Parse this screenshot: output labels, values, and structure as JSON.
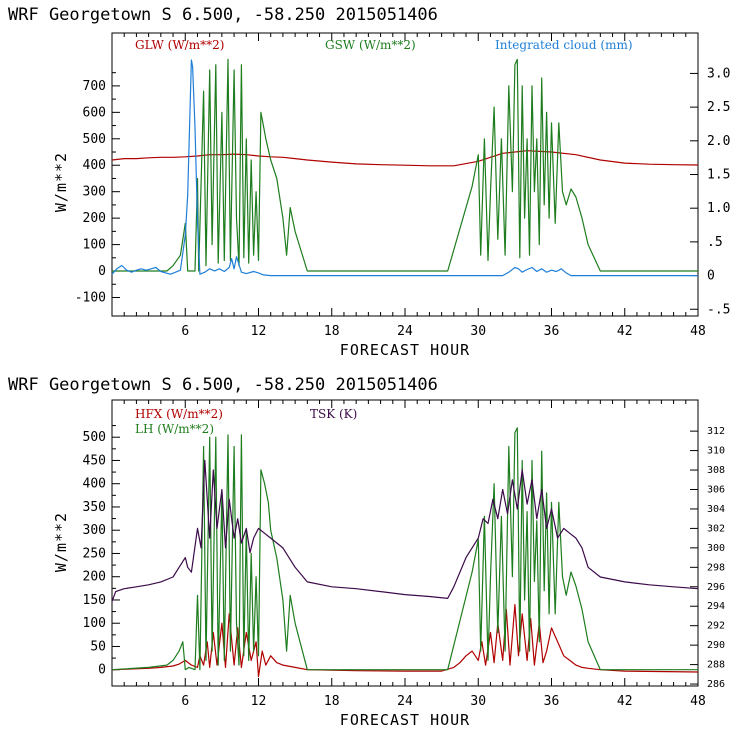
{
  "colors": {
    "red": "#b00000",
    "green": "#1e7d1e",
    "blue": "#1f7fd8",
    "purple": "#3c0a4a",
    "black": "#000000"
  },
  "chart_data": [
    {
      "type": "line",
      "title": "WRF   Georgetown S   6.500, -58.250  2015051406",
      "xlabel": "FORECAST HOUR",
      "ylabel": "W/m**2",
      "xlim": [
        0,
        48
      ],
      "ylim": [
        -170,
        900
      ],
      "y2lim": [
        -0.6,
        3.6
      ],
      "xticks": [
        6,
        12,
        18,
        24,
        30,
        36,
        42,
        48
      ],
      "yticks": [
        -100,
        0,
        100,
        200,
        300,
        400,
        500,
        600,
        700
      ],
      "y2ticks": [
        -0.5,
        0,
        0.5,
        1.0,
        1.5,
        2.0,
        2.5,
        3.0
      ],
      "y2ticklabels": [
        "-.5",
        "0",
        ".5",
        "1.0",
        "1.5",
        "2.0",
        "2.5",
        "3.0"
      ],
      "series": [
        {
          "name": "GLW (W/m**2)",
          "color": "red",
          "axis": "y",
          "x": [
            0,
            1,
            2,
            3,
            4,
            5,
            6,
            7,
            8,
            9,
            10,
            11,
            12,
            13,
            14,
            15,
            16,
            18,
            20,
            22,
            24,
            26,
            28,
            30,
            32,
            34,
            36,
            38,
            40,
            42,
            44,
            46,
            48
          ],
          "y": [
            420,
            425,
            425,
            428,
            430,
            430,
            432,
            435,
            440,
            440,
            442,
            440,
            435,
            432,
            430,
            425,
            420,
            412,
            405,
            402,
            400,
            398,
            398,
            415,
            445,
            455,
            450,
            440,
            420,
            408,
            404,
            402,
            401
          ]
        },
        {
          "name": "GSW (W/m**2)",
          "color": "green",
          "axis": "y",
          "x": [
            0,
            4.5,
            5,
            5.6,
            6,
            6.2,
            6.8,
            7.0,
            7.1,
            7.5,
            7.7,
            8.0,
            8.2,
            8.5,
            8.7,
            9.0,
            9.2,
            9.5,
            9.7,
            10.0,
            10.2,
            10.4,
            10.6,
            10.8,
            11.0,
            11.2,
            11.4,
            11.6,
            11.8,
            12.0,
            12.2,
            12.4,
            12.6,
            13.0,
            13.5,
            14.0,
            14.3,
            14.6,
            15.0,
            16.0,
            27.5,
            29.5,
            30.0,
            30.2,
            30.5,
            30.8,
            31.0,
            31.3,
            31.6,
            31.9,
            32.2,
            32.5,
            32.8,
            33.0,
            33.2,
            33.4,
            33.6,
            33.8,
            34.0,
            34.2,
            34.4,
            34.6,
            34.8,
            35.0,
            35.2,
            35.4,
            35.6,
            35.8,
            36.0,
            36.3,
            36.6,
            36.9,
            37.2,
            37.6,
            38.0,
            38.5,
            39.0,
            40.0,
            48
          ],
          "y": [
            0,
            0,
            20,
            60,
            180,
            0,
            0,
            350,
            0,
            680,
            20,
            760,
            100,
            780,
            30,
            600,
            40,
            800,
            40,
            760,
            200,
            20,
            780,
            50,
            500,
            30,
            420,
            60,
            300,
            40,
            600,
            550,
            500,
            420,
            350,
            200,
            60,
            240,
            150,
            0,
            0,
            320,
            440,
            60,
            500,
            40,
            300,
            620,
            120,
            500,
            60,
            700,
            300,
            780,
            800,
            50,
            700,
            200,
            500,
            60,
            700,
            300,
            500,
            100,
            730,
            250,
            600,
            200,
            560,
            180,
            560,
            300,
            250,
            310,
            280,
            200,
            100,
            0,
            0
          ]
        },
        {
          "name": "Integrated cloud (mm)",
          "color": "blue",
          "axis": "y2",
          "x": [
            0,
            0.4,
            0.8,
            1.2,
            1.6,
            2.0,
            2.4,
            2.8,
            3.2,
            3.6,
            4.0,
            4.4,
            4.8,
            5.2,
            5.6,
            6.0,
            6.2,
            6.4,
            6.5,
            6.6,
            6.8,
            7.0,
            7.2,
            7.6,
            8.0,
            8.4,
            8.8,
            9.2,
            9.6,
            9.8,
            10.0,
            10.2,
            10.6,
            11.0,
            11.6,
            12.0,
            12.4,
            13.0,
            32.0,
            32.5,
            33.0,
            33.3,
            33.6,
            34.0,
            34.4,
            34.8,
            35.2,
            35.6,
            36.0,
            36.4,
            36.8,
            37.2,
            37.6,
            48
          ],
          "y": [
            0.02,
            0.1,
            0.15,
            0.08,
            0.05,
            0.08,
            0.1,
            0.08,
            0.1,
            0.12,
            0.06,
            0.04,
            0.02,
            0.05,
            0.08,
            0.6,
            1.2,
            2.5,
            3.2,
            3.1,
            2.2,
            0.8,
            0.02,
            0.05,
            0.1,
            0.07,
            0.1,
            0.06,
            0.12,
            0.25,
            0.1,
            0.28,
            0.05,
            0.03,
            0.06,
            0.04,
            0.01,
            0,
            0,
            0.05,
            0.12,
            0.1,
            0.05,
            0.09,
            0.12,
            0.06,
            0.1,
            0.05,
            0.08,
            0.06,
            0.1,
            0.04,
            0,
            0
          ]
        }
      ]
    },
    {
      "type": "line",
      "title": "WRF   Georgetown S   6.500, -58.250  2015051406",
      "xlabel": "FORECAST HOUR",
      "ylabel": "W/m**2",
      "xlim": [
        0,
        48
      ],
      "ylim": [
        -35,
        580
      ],
      "y2lim": [
        285.8,
        315.2
      ],
      "xticks": [
        6,
        12,
        18,
        24,
        30,
        36,
        42,
        48
      ],
      "yticks": [
        0,
        50,
        100,
        150,
        200,
        250,
        300,
        350,
        400,
        450,
        500
      ],
      "y2ticks": [
        286,
        288,
        290,
        292,
        294,
        296,
        298,
        300,
        302,
        304,
        306,
        308,
        310,
        312
      ],
      "series": [
        {
          "name": "HFX (W/m**2)",
          "color": "red",
          "axis": "y",
          "x": [
            0,
            1,
            2,
            3,
            4,
            5,
            5.5,
            6,
            6.5,
            7,
            7.2,
            7.5,
            7.8,
            8.0,
            8.3,
            8.6,
            9.0,
            9.3,
            9.6,
            10.0,
            10.3,
            10.6,
            11.0,
            11.4,
            11.8,
            12.0,
            12.3,
            12.6,
            13.0,
            13.5,
            14.0,
            15.0,
            16.0,
            20,
            24,
            27,
            28,
            28.5,
            29,
            29.5,
            30,
            30.3,
            30.6,
            31,
            31.3,
            31.6,
            32,
            32.3,
            32.6,
            33,
            33.3,
            33.6,
            34,
            34.3,
            34.6,
            35,
            35.3,
            35.6,
            36,
            36.5,
            37,
            37.5,
            38,
            38.5,
            39,
            40,
            42,
            48
          ],
          "y": [
            0,
            1,
            2,
            3,
            5,
            8,
            12,
            20,
            10,
            5,
            30,
            10,
            60,
            5,
            80,
            10,
            100,
            5,
            120,
            10,
            90,
            5,
            80,
            20,
            60,
            -15,
            40,
            10,
            30,
            15,
            10,
            5,
            0,
            -2,
            -3,
            -3,
            5,
            15,
            30,
            40,
            20,
            60,
            10,
            80,
            15,
            100,
            20,
            130,
            10,
            140,
            30,
            120,
            20,
            110,
            10,
            100,
            15,
            40,
            90,
            60,
            30,
            20,
            10,
            5,
            3,
            0,
            -3,
            -5
          ]
        },
        {
          "name": "LH (W/m**2)",
          "color": "green",
          "axis": "y",
          "x": [
            0,
            3,
            4.5,
            5,
            5.5,
            5.8,
            6.0,
            6.3,
            6.8,
            7.0,
            7.2,
            7.5,
            7.7,
            8.0,
            8.2,
            8.5,
            8.7,
            9.0,
            9.2,
            9.5,
            9.7,
            10.0,
            10.2,
            10.4,
            10.6,
            10.8,
            11.0,
            11.2,
            11.4,
            11.6,
            11.8,
            12.0,
            12.2,
            12.5,
            12.8,
            13.0,
            13.5,
            14.0,
            14.3,
            14.6,
            15.0,
            16.0,
            27.5,
            29.5,
            30.0,
            30.2,
            30.5,
            30.8,
            31.0,
            31.3,
            31.6,
            31.9,
            32.2,
            32.5,
            32.8,
            33.0,
            33.2,
            33.4,
            33.6,
            33.8,
            34.0,
            34.2,
            34.4,
            34.6,
            34.8,
            35.0,
            35.2,
            35.4,
            35.6,
            35.8,
            36.0,
            36.3,
            36.6,
            36.9,
            37.2,
            37.6,
            38.0,
            38.5,
            39.0,
            40.0,
            48
          ],
          "y": [
            0,
            5,
            10,
            20,
            40,
            60,
            0,
            5,
            0,
            160,
            0,
            480,
            20,
            500,
            40,
            500,
            10,
            380,
            20,
            505,
            40,
            480,
            100,
            10,
            505,
            30,
            300,
            20,
            250,
            40,
            200,
            30,
            430,
            400,
            360,
            300,
            240,
            150,
            40,
            160,
            100,
            0,
            0,
            210,
            280,
            40,
            330,
            20,
            200,
            400,
            80,
            330,
            40,
            480,
            200,
            510,
            520,
            40,
            450,
            150,
            340,
            40,
            450,
            190,
            320,
            60,
            470,
            170,
            380,
            120,
            360,
            120,
            360,
            200,
            160,
            210,
            180,
            130,
            60,
            0,
            0
          ]
        },
        {
          "name": "TSK (K)",
          "color": "purple",
          "axis": "y2",
          "x": [
            0,
            0.3,
            1,
            2,
            3,
            4,
            5,
            5.5,
            6,
            6.2,
            6.5,
            7,
            7.3,
            7.6,
            8.0,
            8.3,
            8.6,
            9.0,
            9.3,
            9.6,
            10.0,
            10.3,
            10.6,
            11.0,
            11.3,
            11.6,
            12.0,
            12.5,
            13,
            14,
            15,
            16,
            18,
            20,
            22,
            24,
            26,
            27.5,
            28,
            29,
            30,
            30.4,
            30.8,
            31.2,
            31.6,
            32,
            32.4,
            32.8,
            33.2,
            33.6,
            34,
            34.4,
            34.8,
            35.2,
            35.6,
            36,
            36.5,
            37,
            37.5,
            38,
            38.5,
            39,
            40,
            42,
            44,
            46,
            48
          ],
          "y": [
            294.5,
            295.5,
            295.8,
            296.0,
            296.2,
            296.5,
            297.0,
            298.0,
            299.0,
            298.0,
            297.5,
            302.0,
            300.0,
            309.0,
            301.0,
            308.0,
            302.0,
            306.0,
            300.0,
            305.0,
            301.0,
            303.0,
            300.5,
            302.0,
            299.5,
            301.0,
            302.0,
            301.5,
            301.0,
            300.0,
            298.0,
            296.5,
            296.0,
            295.8,
            295.5,
            295.2,
            295.0,
            294.8,
            296.0,
            299.0,
            301.0,
            303.0,
            302.5,
            305.0,
            303.0,
            306.0,
            303.5,
            307.0,
            304.0,
            308.0,
            304.5,
            307.0,
            303.0,
            306.0,
            302.0,
            304.0,
            301.0,
            302.0,
            301.5,
            301.0,
            300.0,
            298.0,
            297.0,
            296.5,
            296.2,
            296.0,
            295.8
          ]
        }
      ]
    }
  ],
  "legend": {
    "top": {
      "glw": "GLW (W/m**2)",
      "gsw": "GSW (W/m**2)",
      "cloud": "Integrated cloud (mm)"
    },
    "bottom": {
      "hfx": "HFX (W/m**2)",
      "lh": "LH  (W/m**2)",
      "tsk": "TSK (K)"
    }
  }
}
